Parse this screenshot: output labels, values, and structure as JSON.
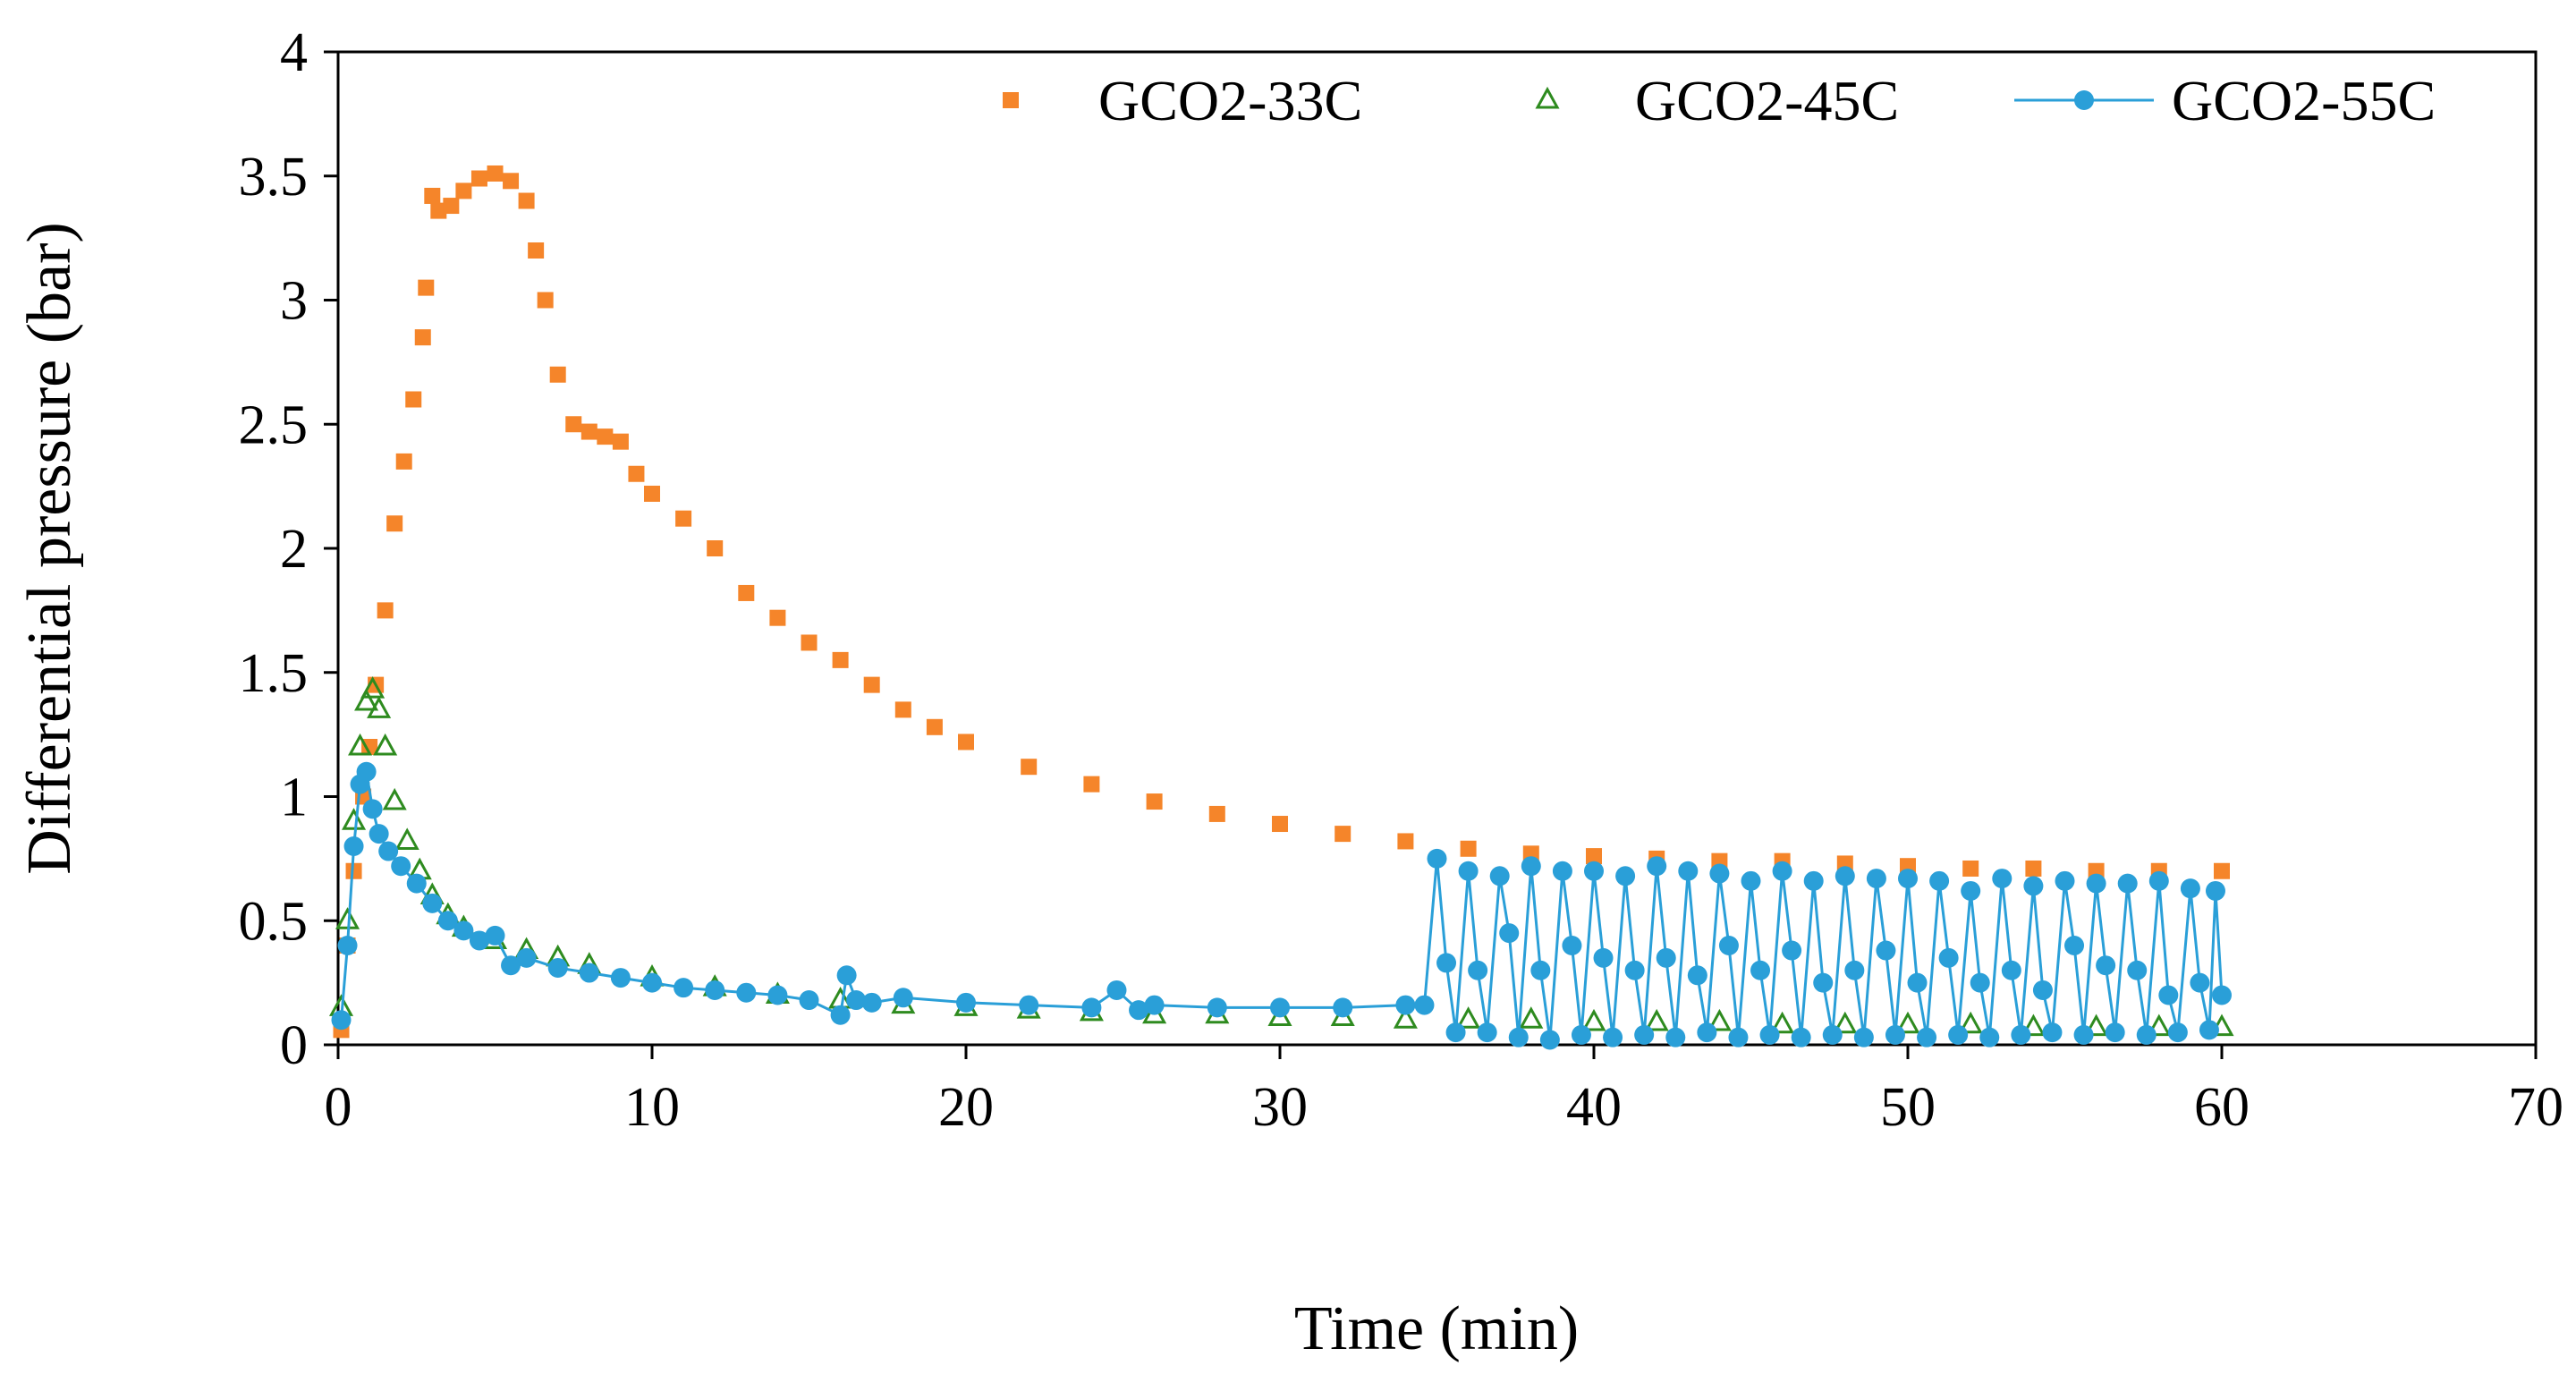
{
  "chart_data": {
    "type": "scatter",
    "title": "",
    "xlabel": "Time (min)",
    "ylabel": "Differential pressure (bar)",
    "xlim": [
      0,
      70
    ],
    "ylim": [
      0,
      4
    ],
    "xticks": [
      0,
      10,
      20,
      30,
      40,
      50,
      60,
      70
    ],
    "xtick_labels": [
      "0",
      "10",
      "20",
      "30",
      "40",
      "50",
      "60",
      "70"
    ],
    "yticks": [
      0,
      0.5,
      1,
      1.5,
      2,
      2.5,
      3,
      3.5,
      4
    ],
    "ytick_labels": [
      "0",
      "0.5",
      "1",
      "1.5",
      "2",
      "2.5",
      "3",
      "3.5",
      "4"
    ],
    "grid": false,
    "legend_position": "top-right",
    "series": [
      {
        "name": "GCO2-33C",
        "marker": "square",
        "line": false,
        "color": "#F5852A",
        "points": [
          [
            0.1,
            0.06
          ],
          [
            0.3,
            0.4
          ],
          [
            0.5,
            0.7
          ],
          [
            0.8,
            1.0
          ],
          [
            1.0,
            1.2
          ],
          [
            1.2,
            1.45
          ],
          [
            1.5,
            1.75
          ],
          [
            1.8,
            2.1
          ],
          [
            2.1,
            2.35
          ],
          [
            2.4,
            2.6
          ],
          [
            2.7,
            2.85
          ],
          [
            2.8,
            3.05
          ],
          [
            3.0,
            3.42
          ],
          [
            3.2,
            3.36
          ],
          [
            3.6,
            3.38
          ],
          [
            4.0,
            3.44
          ],
          [
            4.5,
            3.49
          ],
          [
            5.0,
            3.51
          ],
          [
            5.5,
            3.48
          ],
          [
            6.0,
            3.4
          ],
          [
            6.3,
            3.2
          ],
          [
            6.6,
            3.0
          ],
          [
            7.0,
            2.7
          ],
          [
            7.5,
            2.5
          ],
          [
            8.0,
            2.47
          ],
          [
            8.5,
            2.45
          ],
          [
            9.0,
            2.43
          ],
          [
            9.5,
            2.3
          ],
          [
            10.0,
            2.22
          ],
          [
            11.0,
            2.12
          ],
          [
            12.0,
            2.0
          ],
          [
            13.0,
            1.82
          ],
          [
            14.0,
            1.72
          ],
          [
            15.0,
            1.62
          ],
          [
            16.0,
            1.55
          ],
          [
            17.0,
            1.45
          ],
          [
            18.0,
            1.35
          ],
          [
            19.0,
            1.28
          ],
          [
            20.0,
            1.22
          ],
          [
            22.0,
            1.12
          ],
          [
            24.0,
            1.05
          ],
          [
            26.0,
            0.98
          ],
          [
            28.0,
            0.93
          ],
          [
            30.0,
            0.89
          ],
          [
            32.0,
            0.85
          ],
          [
            34.0,
            0.82
          ],
          [
            36.0,
            0.79
          ],
          [
            38.0,
            0.77
          ],
          [
            40.0,
            0.76
          ],
          [
            42.0,
            0.75
          ],
          [
            44.0,
            0.74
          ],
          [
            46.0,
            0.74
          ],
          [
            48.0,
            0.73
          ],
          [
            50.0,
            0.72
          ],
          [
            52.0,
            0.71
          ],
          [
            54.0,
            0.71
          ],
          [
            56.0,
            0.7
          ],
          [
            58.0,
            0.7
          ],
          [
            60.0,
            0.7
          ]
        ]
      },
      {
        "name": "GCO2-45C",
        "marker": "triangle",
        "line": false,
        "color": "#2E8B1F",
        "points": [
          [
            0.1,
            0.15
          ],
          [
            0.3,
            0.5
          ],
          [
            0.5,
            0.9
          ],
          [
            0.7,
            1.2
          ],
          [
            0.9,
            1.38
          ],
          [
            1.1,
            1.43
          ],
          [
            1.3,
            1.35
          ],
          [
            1.5,
            1.2
          ],
          [
            1.8,
            0.98
          ],
          [
            2.2,
            0.82
          ],
          [
            2.6,
            0.7
          ],
          [
            3.0,
            0.6
          ],
          [
            3.5,
            0.52
          ],
          [
            4.0,
            0.47
          ],
          [
            5.0,
            0.42
          ],
          [
            6.0,
            0.38
          ],
          [
            7.0,
            0.35
          ],
          [
            8.0,
            0.32
          ],
          [
            10.0,
            0.27
          ],
          [
            12.0,
            0.23
          ],
          [
            14.0,
            0.2
          ],
          [
            16.0,
            0.18
          ],
          [
            18.0,
            0.16
          ],
          [
            20.0,
            0.15
          ],
          [
            22.0,
            0.14
          ],
          [
            24.0,
            0.13
          ],
          [
            26.0,
            0.12
          ],
          [
            28.0,
            0.12
          ],
          [
            30.0,
            0.11
          ],
          [
            32.0,
            0.11
          ],
          [
            34.0,
            0.1
          ],
          [
            36.0,
            0.1
          ],
          [
            38.0,
            0.1
          ],
          [
            40.0,
            0.09
          ],
          [
            42.0,
            0.09
          ],
          [
            44.0,
            0.09
          ],
          [
            46.0,
            0.08
          ],
          [
            48.0,
            0.08
          ],
          [
            50.0,
            0.08
          ],
          [
            52.0,
            0.08
          ],
          [
            54.0,
            0.07
          ],
          [
            56.0,
            0.07
          ],
          [
            58.0,
            0.07
          ],
          [
            60.0,
            0.07
          ]
        ]
      },
      {
        "name": "GCO2-55C",
        "marker": "circle",
        "line": true,
        "color": "#2A9FD8",
        "points": [
          [
            0.1,
            0.1
          ],
          [
            0.3,
            0.4
          ],
          [
            0.5,
            0.8
          ],
          [
            0.7,
            1.05
          ],
          [
            0.9,
            1.1
          ],
          [
            1.1,
            0.95
          ],
          [
            1.3,
            0.85
          ],
          [
            1.6,
            0.78
          ],
          [
            2.0,
            0.72
          ],
          [
            2.5,
            0.65
          ],
          [
            3.0,
            0.57
          ],
          [
            3.5,
            0.5
          ],
          [
            4.0,
            0.46
          ],
          [
            4.5,
            0.42
          ],
          [
            5.0,
            0.44
          ],
          [
            5.5,
            0.32
          ],
          [
            6.0,
            0.35
          ],
          [
            7.0,
            0.31
          ],
          [
            8.0,
            0.29
          ],
          [
            9.0,
            0.27
          ],
          [
            10.0,
            0.25
          ],
          [
            11.0,
            0.23
          ],
          [
            12.0,
            0.22
          ],
          [
            13.0,
            0.21
          ],
          [
            14.0,
            0.2
          ],
          [
            15.0,
            0.18
          ],
          [
            16.0,
            0.12
          ],
          [
            16.2,
            0.28
          ],
          [
            16.5,
            0.18
          ],
          [
            17.0,
            0.17
          ],
          [
            18.0,
            0.19
          ],
          [
            20.0,
            0.17
          ],
          [
            22.0,
            0.16
          ],
          [
            24.0,
            0.15
          ],
          [
            24.8,
            0.22
          ],
          [
            25.5,
            0.14
          ],
          [
            26.0,
            0.16
          ],
          [
            28.0,
            0.15
          ],
          [
            30.0,
            0.15
          ],
          [
            32.0,
            0.15
          ],
          [
            34.0,
            0.16
          ],
          [
            34.6,
            0.16
          ],
          [
            35.0,
            0.75
          ],
          [
            35.3,
            0.33
          ],
          [
            35.6,
            0.05
          ],
          [
            36.0,
            0.7
          ],
          [
            36.3,
            0.3
          ],
          [
            36.6,
            0.05
          ],
          [
            37.0,
            0.68
          ],
          [
            37.3,
            0.45
          ],
          [
            37.6,
            0.03
          ],
          [
            38.0,
            0.72
          ],
          [
            38.3,
            0.3
          ],
          [
            38.6,
            0.02
          ],
          [
            39.0,
            0.7
          ],
          [
            39.3,
            0.4
          ],
          [
            39.6,
            0.04
          ],
          [
            40.0,
            0.7
          ],
          [
            40.3,
            0.35
          ],
          [
            40.6,
            0.03
          ],
          [
            41.0,
            0.68
          ],
          [
            41.3,
            0.3
          ],
          [
            41.6,
            0.04
          ],
          [
            42.0,
            0.72
          ],
          [
            42.3,
            0.35
          ],
          [
            42.6,
            0.03
          ],
          [
            43.0,
            0.7
          ],
          [
            43.3,
            0.28
          ],
          [
            43.6,
            0.05
          ],
          [
            44.0,
            0.69
          ],
          [
            44.3,
            0.4
          ],
          [
            44.6,
            0.03
          ],
          [
            45.0,
            0.66
          ],
          [
            45.3,
            0.3
          ],
          [
            45.6,
            0.04
          ],
          [
            46.0,
            0.7
          ],
          [
            46.3,
            0.38
          ],
          [
            46.6,
            0.03
          ],
          [
            47.0,
            0.66
          ],
          [
            47.3,
            0.25
          ],
          [
            47.6,
            0.04
          ],
          [
            48.0,
            0.68
          ],
          [
            48.3,
            0.3
          ],
          [
            48.6,
            0.03
          ],
          [
            49.0,
            0.67
          ],
          [
            49.3,
            0.38
          ],
          [
            49.6,
            0.04
          ],
          [
            50.0,
            0.67
          ],
          [
            50.3,
            0.25
          ],
          [
            50.6,
            0.03
          ],
          [
            51.0,
            0.66
          ],
          [
            51.3,
            0.35
          ],
          [
            51.6,
            0.04
          ],
          [
            52.0,
            0.62
          ],
          [
            52.3,
            0.25
          ],
          [
            52.6,
            0.03
          ],
          [
            53.0,
            0.67
          ],
          [
            53.3,
            0.3
          ],
          [
            53.6,
            0.04
          ],
          [
            54.0,
            0.64
          ],
          [
            54.3,
            0.22
          ],
          [
            54.6,
            0.05
          ],
          [
            55.0,
            0.66
          ],
          [
            55.3,
            0.4
          ],
          [
            55.6,
            0.04
          ],
          [
            56.0,
            0.65
          ],
          [
            56.3,
            0.32
          ],
          [
            56.6,
            0.05
          ],
          [
            57.0,
            0.65
          ],
          [
            57.3,
            0.3
          ],
          [
            57.6,
            0.04
          ],
          [
            58.0,
            0.66
          ],
          [
            58.3,
            0.2
          ],
          [
            58.6,
            0.05
          ],
          [
            59.0,
            0.63
          ],
          [
            59.3,
            0.25
          ],
          [
            59.6,
            0.06
          ],
          [
            59.8,
            0.62
          ],
          [
            60.0,
            0.2
          ]
        ]
      }
    ]
  }
}
